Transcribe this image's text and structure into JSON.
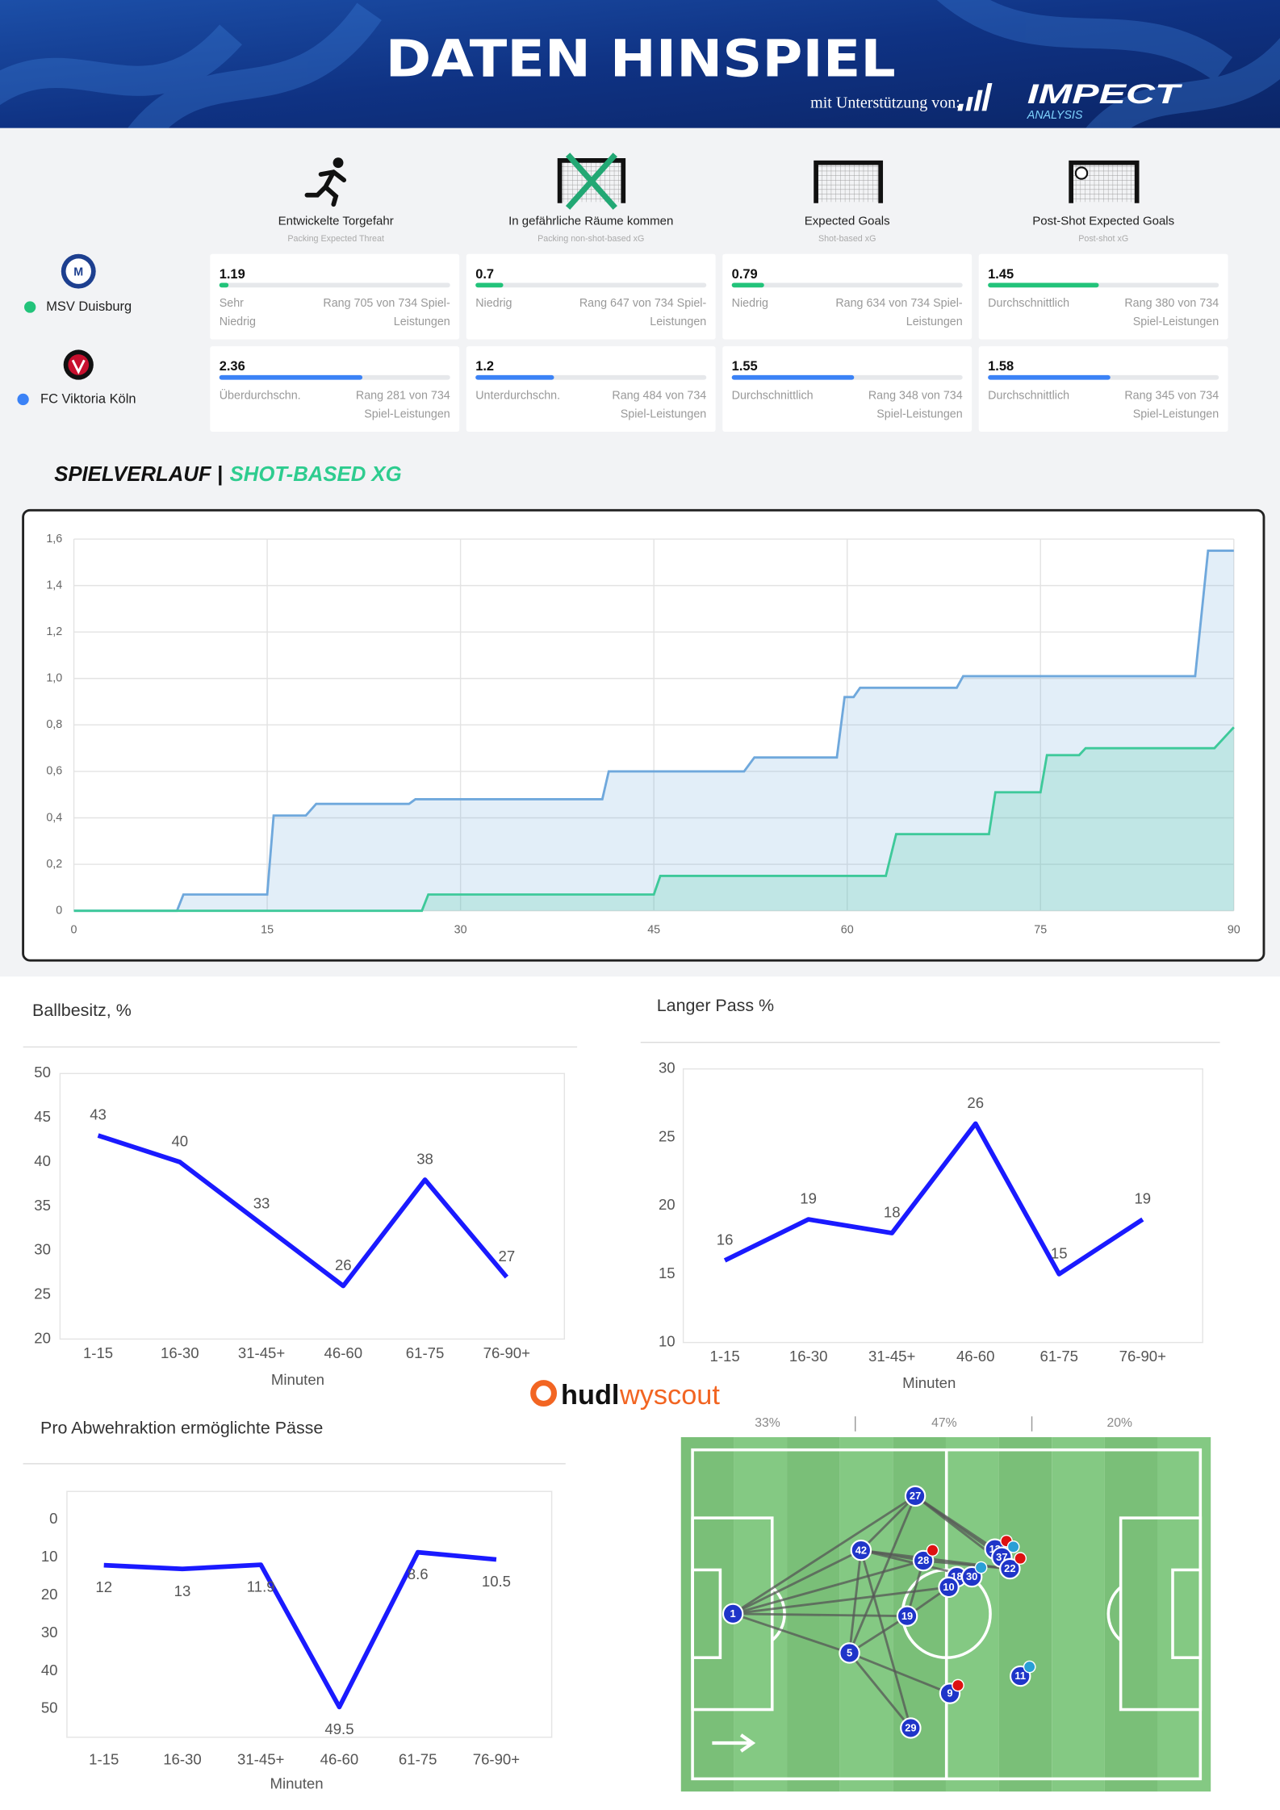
{
  "header": {
    "title": "DATEN HINSPIEL",
    "support": "mit Unterstützung von:",
    "logo": "IMPECT",
    "logo_sub": "ANALYSIS"
  },
  "metrics": {
    "columns": [
      {
        "title": "Entwickelte Torgefahr",
        "subtitle": "Packing Expected Threat"
      },
      {
        "title": "In gefährliche Räume kommen",
        "subtitle": "Packing non-shot-based xG"
      },
      {
        "title": "Expected Goals",
        "subtitle": "Shot-based xG"
      },
      {
        "title": "Post-Shot Expected Goals",
        "subtitle": "Post-shot xG"
      }
    ],
    "teams": [
      {
        "name": "MSV Duisburg",
        "color": "#22c37a",
        "cells": [
          {
            "value": 1.19,
            "label": [
              "Sehr",
              "Niedrig"
            ],
            "rank": [
              "Rang 705 von 734 Spiel-",
              "Leistungen"
            ],
            "bar": 0.04
          },
          {
            "value": 0.7,
            "label": [
              "Niedrig"
            ],
            "rank": [
              "Rang 647 von 734 Spiel-",
              "Leistungen"
            ],
            "bar": 0.12
          },
          {
            "value": 0.79,
            "label": [
              "Niedrig"
            ],
            "rank": [
              "Rang 634 von 734 Spiel-",
              "Leistungen"
            ],
            "bar": 0.14
          },
          {
            "value": 1.45,
            "label": [
              "Durchschnittlich"
            ],
            "rank": [
              "Rang 380 von 734",
              "Spiel-Leistungen"
            ],
            "bar": 0.48
          }
        ]
      },
      {
        "name": "FC Viktoria Köln",
        "color": "#3b82f6",
        "cells": [
          {
            "value": 2.36,
            "label": [
              "Überdurchschn."
            ],
            "rank": [
              "Rang 281 von 734",
              "Spiel-Leistungen"
            ],
            "bar": 0.62
          },
          {
            "value": 1.2,
            "label": [
              "Unterdurchschn."
            ],
            "rank": [
              "Rang 484 von 734",
              "Spiel-Leistungen"
            ],
            "bar": 0.34
          },
          {
            "value": 1.55,
            "label": [
              "Durchschnittlich"
            ],
            "rank": [
              "Rang 348 von 734",
              "Spiel-Leistungen"
            ],
            "bar": 0.53
          },
          {
            "value": 1.58,
            "label": [
              "Durchschnittlich"
            ],
            "rank": [
              "Rang 345 von 734",
              "Spiel-Leistungen"
            ],
            "bar": 0.53
          }
        ]
      }
    ]
  },
  "chart_data": [
    {
      "type": "area",
      "title": "SPIELVERLAUF |",
      "title_accent": "SHOT-BASED XG",
      "xlim": [
        0,
        90
      ],
      "ylim": [
        0,
        1.6
      ],
      "grid": true,
      "xticks": [
        0,
        15,
        30,
        45,
        60,
        75,
        90
      ],
      "yticks": [
        0,
        {
          "value": 0.2,
          "label": "0,2"
        },
        {
          "value": 0.4,
          "label": "0,4"
        },
        {
          "value": 0.6,
          "label": "0,6"
        },
        {
          "value": 0.8,
          "label": "0,8"
        },
        {
          "value": 1.0,
          "label": "1,0"
        },
        {
          "value": 1.2,
          "label": "1,2"
        },
        {
          "value": 1.4,
          "label": "1,4"
        },
        {
          "value": 1.6,
          "label": "1,6"
        }
      ],
      "series": [
        {
          "color": "#6fa8dc",
          "x": [
            0,
            8,
            8.5,
            15,
            15.5,
            18,
            18.8,
            26,
            26.5,
            41,
            41.5,
            52,
            52.8,
            59.2,
            59.8,
            60.5,
            61,
            68.5,
            69,
            87,
            88,
            90
          ],
          "values": [
            0,
            0,
            0.07,
            0.07,
            0.41,
            0.41,
            0.46,
            0.46,
            0.48,
            0.48,
            0.6,
            0.6,
            0.66,
            0.66,
            0.92,
            0.92,
            0.96,
            0.96,
            1.01,
            1.01,
            1.55,
            1.55
          ]
        },
        {
          "color": "#3ec99a",
          "x": [
            0,
            27,
            27.5,
            45,
            45.5,
            63,
            63.8,
            71,
            71.5,
            75,
            75.5,
            78,
            78.5,
            88.5,
            90
          ],
          "values": [
            0,
            0,
            0.07,
            0.07,
            0.15,
            0.15,
            0.33,
            0.33,
            0.51,
            0.51,
            0.67,
            0.67,
            0.7,
            0.7,
            0.79
          ]
        }
      ]
    },
    {
      "type": "line",
      "title": "Ballbesitz, %",
      "xlabel": "Minuten",
      "color": "#1a1aff",
      "categories": [
        "1-15",
        "16-30",
        "31-45+",
        "46-60",
        "61-75",
        "76-90+"
      ],
      "values": [
        43,
        40,
        33,
        26,
        38,
        27
      ],
      "ylim": [
        20,
        50
      ],
      "yticks": [
        20,
        25,
        30,
        35,
        40,
        45,
        50
      ]
    },
    {
      "type": "line",
      "title": "Langer Pass %",
      "xlabel": "Minuten",
      "color": "#1a1aff",
      "categories": [
        "1-15",
        "16-30",
        "31-45+",
        "46-60",
        "61-75",
        "76-90+"
      ],
      "values": [
        16,
        19,
        18,
        26,
        15,
        19
      ],
      "ylim": [
        10,
        30
      ],
      "yticks": [
        10,
        15,
        20,
        25,
        30
      ]
    },
    {
      "type": "line",
      "title": "Pro Abwehraktion ermöglichte Pässe",
      "xlabel": "Minuten",
      "color": "#1a1aff",
      "categories": [
        "1-15",
        "16-30",
        "31-45+",
        "46-60",
        "61-75",
        "76-90+"
      ],
      "values": [
        12,
        13,
        11.9,
        49.5,
        8.6,
        10.5
      ],
      "ylim": [
        -7.5,
        57.5
      ],
      "y_inverted": true,
      "yticks": [
        0,
        10,
        20,
        30,
        40,
        50
      ]
    }
  ],
  "hudl_logo": {
    "brand": "hudl",
    "product": "wyscout"
  },
  "pass_network": {
    "zones": [
      "33%",
      "47%",
      "20%"
    ],
    "nodes": [
      "1",
      "5",
      "42",
      "27",
      "19",
      "29",
      "9",
      "11",
      "28",
      "18",
      "10",
      "30",
      "13",
      "37",
      "22"
    ]
  }
}
